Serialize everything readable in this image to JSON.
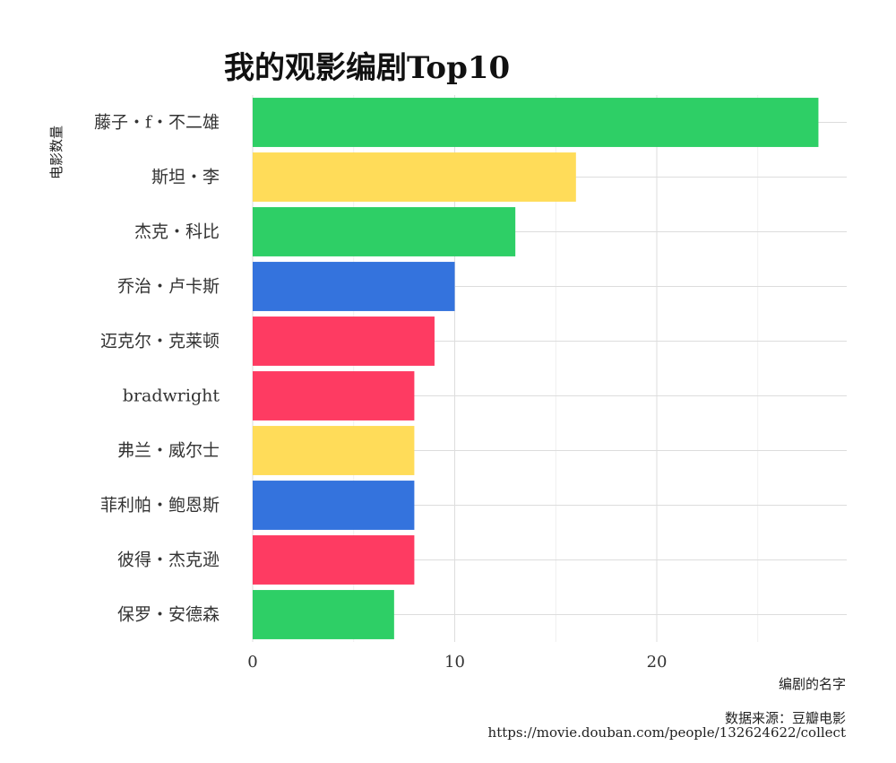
{
  "chart_data": {
    "type": "bar",
    "orientation": "horizontal",
    "title": "我的观影编剧Top10",
    "xlabel": "编剧的名字",
    "ylabel": "电影数量",
    "categories": [
      "藤子・f・不二雄",
      "斯坦・李",
      "杰克・科比",
      "乔治・卢卡斯",
      "迈克尔・克莱顿",
      "bradwright",
      "弗兰・威尔士",
      "菲利帕・鲍恩斯",
      "彼得・杰克逊",
      "保罗・安德森"
    ],
    "values": [
      28,
      16,
      13,
      10,
      9,
      8,
      8,
      8,
      8,
      7
    ],
    "bar_colors": [
      "#2ecf66",
      "#ffdc59",
      "#2ecf66",
      "#3473dd",
      "#fe3b62",
      "#fe3b62",
      "#ffdc59",
      "#3473dd",
      "#fe3b62",
      "#2ecf66"
    ],
    "xlim": [
      0,
      29.4
    ],
    "xticks": [
      0,
      10,
      20
    ],
    "grid": true,
    "legend": "none"
  },
  "caption": {
    "line1": "数据来源：豆瓣电影",
    "line2": "https://movie.douban.com/people/132624622/collect"
  }
}
